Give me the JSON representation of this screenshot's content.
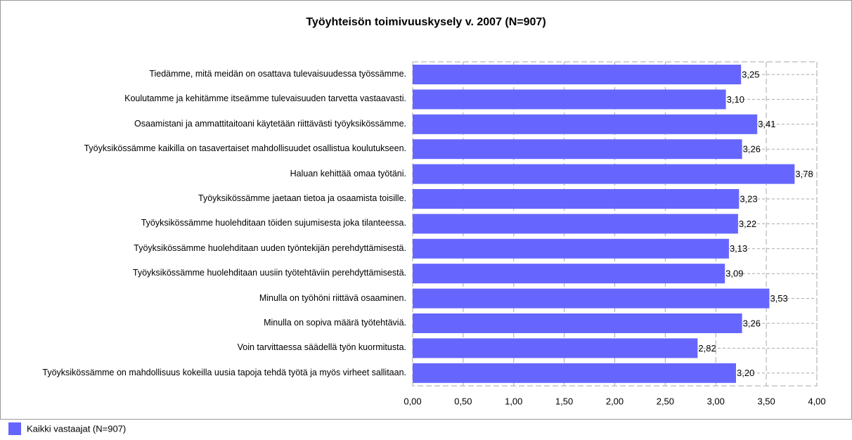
{
  "chart_data": {
    "type": "barh",
    "title": "Työyhteisön toimivuuskysely v. 2007 (N=907)",
    "categories": [
      "Tiedämme, mitä meidän on osattava tulevaisuudessa työssämme.",
      "Koulutamme ja kehitämme itseämme tulevaisuuden tarvetta vastaavasti.",
      "Osaamistani ja ammattitaitoani käytetään riittävästi työyksikössämme.",
      "Työyksikössämme kaikilla on tasavertaiset mahdollisuudet osallistua koulutukseen.",
      "Haluan kehittää omaa työtäni.",
      "Työyksikössämme jaetaan tietoa ja osaamista toisille.",
      "Työyksikössämme huolehditaan töiden sujumisesta joka tilanteessa.",
      "Työyksikössämme huolehditaan uuden työntekijän perehdyttämisestä.",
      "Työyksikössämme huolehditaan uusiin työtehtäviin perehdyttämisestä.",
      "Minulla on työhöni riittävä osaaminen.",
      "Minulla on sopiva määrä työtehtäviä.",
      "Voin tarvittaessa säädellä työn kuormitusta.",
      "Työyksikössämme on mahdollisuus kokeilla uusia tapoja tehdä työtä ja myös virheet sallitaan."
    ],
    "series": [
      {
        "name": "Kaikki vastaajat (N=907)",
        "color": "#6666ff",
        "values": [
          3.25,
          3.1,
          3.41,
          3.26,
          3.78,
          3.23,
          3.22,
          3.13,
          3.09,
          3.53,
          3.26,
          2.82,
          3.2
        ],
        "value_labels": [
          "3,25",
          "3,10",
          "3,41",
          "3,26",
          "3,78",
          "3,23",
          "3,22",
          "3,13",
          "3,09",
          "3,53",
          "3,26",
          "2,82",
          "3,20"
        ]
      }
    ],
    "xlim": [
      0,
      4
    ],
    "xticks": [
      {
        "value": 0,
        "label": "0,00"
      },
      {
        "value": 0.5,
        "label": "0,50"
      },
      {
        "value": 1,
        "label": "1,00"
      },
      {
        "value": 1.5,
        "label": "1,50"
      },
      {
        "value": 2,
        "label": "2,00"
      },
      {
        "value": 2.5,
        "label": "2,50"
      },
      {
        "value": 3,
        "label": "3,00"
      },
      {
        "value": 3.5,
        "label": "3,50"
      },
      {
        "value": 4,
        "label": "4,00"
      }
    ],
    "grid": true
  }
}
